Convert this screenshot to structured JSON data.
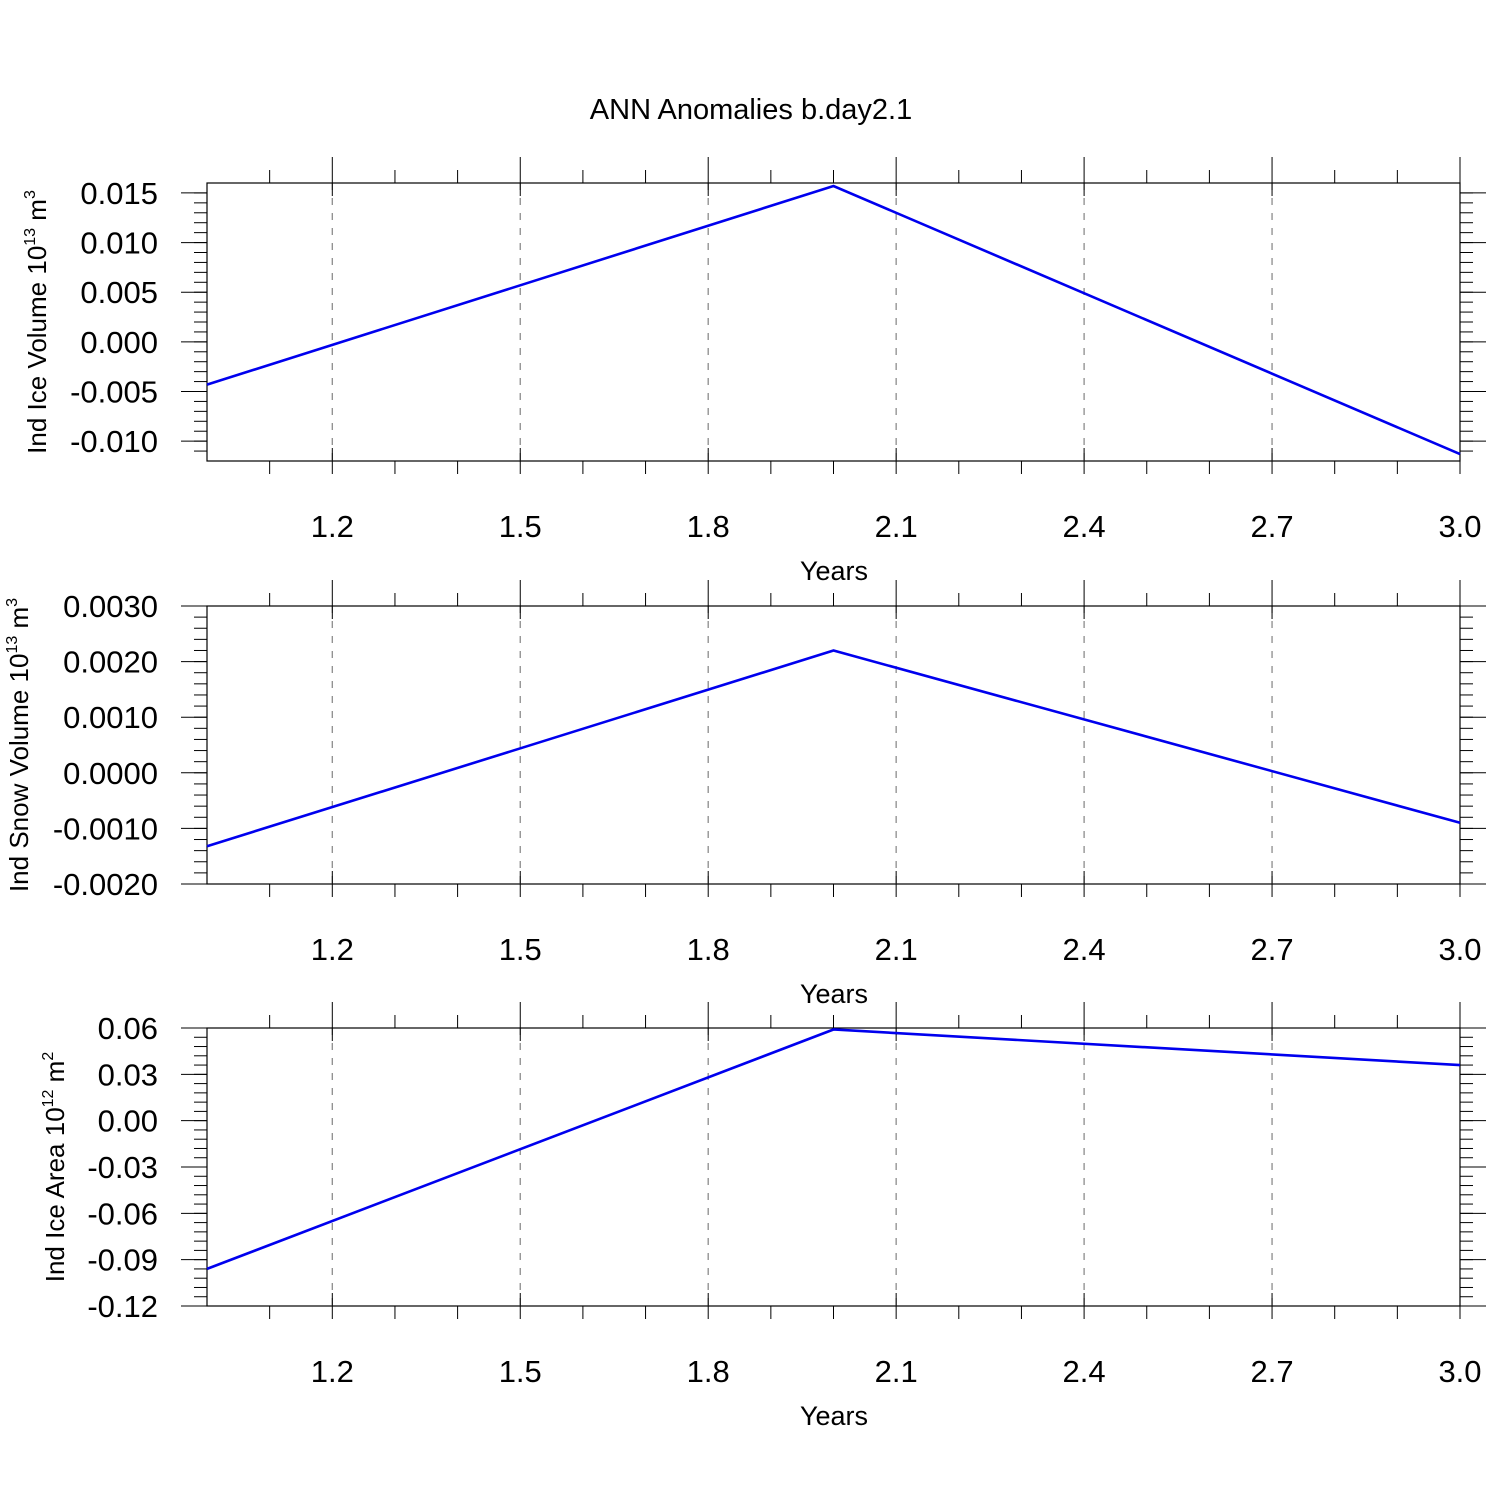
{
  "title": "ANN Anomalies b.day2.1",
  "colors": {
    "series": "#0000ee",
    "grid": "#8c8c8c",
    "axes": "#000000"
  },
  "chart_data": [
    {
      "type": "line",
      "xlabel": "Years",
      "ylabel": {
        "text": "Ind Ice Volume 10",
        "exponent": "13",
        "unit": " m",
        "unit_exponent": "3"
      },
      "xlim": [
        1.0,
        3.0
      ],
      "ylim": [
        -0.012,
        0.016
      ],
      "x_ticks": [
        1.2,
        1.5,
        1.8,
        2.1,
        2.4,
        2.7,
        3.0
      ],
      "x_tick_labels": [
        "1.2",
        "1.5",
        "1.8",
        "2.1",
        "2.4",
        "2.7",
        "3.0"
      ],
      "y_ticks": [
        0.015,
        0.01,
        0.005,
        0.0,
        -0.005,
        -0.01
      ],
      "y_tick_labels": [
        "0.015",
        "0.010",
        "0.005",
        "0.000",
        "-0.005",
        "-0.010"
      ],
      "y_minor_step": 0.001,
      "grid": "vertical dashed at major x ticks",
      "x": [
        1.0,
        2.0,
        3.0
      ],
      "y": [
        -0.0043,
        0.0157,
        -0.0113
      ]
    },
    {
      "type": "line",
      "xlabel": "Years",
      "ylabel": {
        "text": "Ind Snow Volume 10",
        "exponent": "13",
        "unit": " m",
        "unit_exponent": "3"
      },
      "xlim": [
        1.0,
        3.0
      ],
      "ylim": [
        -0.002,
        0.003
      ],
      "x_ticks": [
        1.2,
        1.5,
        1.8,
        2.1,
        2.4,
        2.7,
        3.0
      ],
      "x_tick_labels": [
        "1.2",
        "1.5",
        "1.8",
        "2.1",
        "2.4",
        "2.7",
        "3.0"
      ],
      "y_ticks": [
        0.003,
        0.002,
        0.001,
        0.0,
        -0.001,
        -0.002
      ],
      "y_tick_labels": [
        "0.0030",
        "0.0020",
        "0.0010",
        "0.0000",
        "-0.0010",
        "-0.0020"
      ],
      "y_minor_step": 0.0002,
      "grid": "vertical dashed at major x ticks",
      "x": [
        1.0,
        2.0,
        3.0
      ],
      "y": [
        -0.00132,
        0.0022,
        -0.0009
      ]
    },
    {
      "type": "line",
      "xlabel": "Years",
      "ylabel": {
        "text": "Ind Ice Area 10",
        "exponent": "12",
        "unit": " m",
        "unit_exponent": "2"
      },
      "xlim": [
        1.0,
        3.0
      ],
      "ylim": [
        -0.12,
        0.06
      ],
      "x_ticks": [
        1.2,
        1.5,
        1.8,
        2.1,
        2.4,
        2.7,
        3.0
      ],
      "x_tick_labels": [
        "1.2",
        "1.5",
        "1.8",
        "2.1",
        "2.4",
        "2.7",
        "3.0"
      ],
      "y_ticks": [
        0.06,
        0.03,
        0.0,
        -0.03,
        -0.06,
        -0.09,
        -0.12
      ],
      "y_tick_labels": [
        "0.06",
        "0.03",
        "0.00",
        "-0.03",
        "-0.06",
        "-0.09",
        "-0.12"
      ],
      "y_minor_step": 0.006,
      "grid": "vertical dashed at major x ticks",
      "x": [
        1.0,
        2.0,
        3.0
      ],
      "y": [
        -0.096,
        0.059,
        0.036
      ]
    }
  ]
}
